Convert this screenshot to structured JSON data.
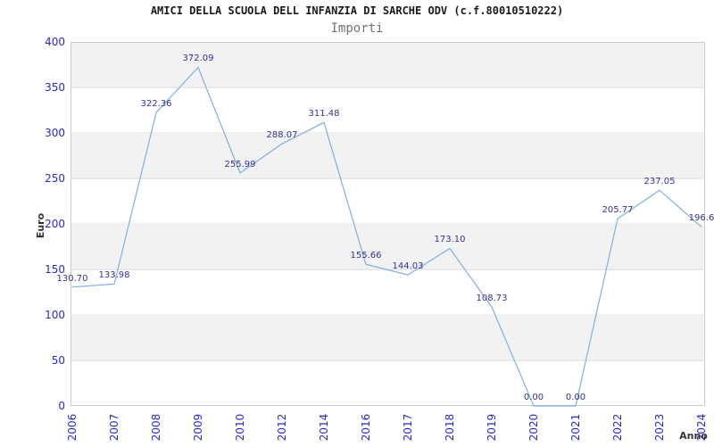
{
  "chart_data": {
    "type": "line",
    "title": "AMICI DELLA SCUOLA DELL INFANZIA DI SARCHE ODV (c.f.80010510222)",
    "subtitle": "Importi",
    "xlabel": "Anno",
    "ylabel": "Euro",
    "categories": [
      "2006",
      "2007",
      "2008",
      "2009",
      "2010",
      "2012",
      "2014",
      "2016",
      "2017",
      "2018",
      "2019",
      "2020",
      "2021",
      "2022",
      "2023",
      "2024"
    ],
    "values": [
      130.7,
      133.98,
      322.36,
      372.09,
      255.99,
      288.07,
      311.48,
      155.66,
      144.03,
      173.1,
      108.73,
      0.0,
      0.0,
      205.77,
      237.05,
      196.6
    ],
    "point_labels": [
      "130.70",
      "133.98",
      "322.36",
      "372.09",
      "255.99",
      "288.07",
      "311.48",
      "155.66",
      "144.03",
      "173.10",
      "108.73",
      "0.00",
      "0.00",
      "205.77",
      "237.05",
      "196.6"
    ],
    "ylim": [
      0,
      400
    ],
    "yticks": [
      0,
      50,
      100,
      150,
      200,
      250,
      300,
      350,
      400
    ],
    "grid": "horizontal-bands",
    "legend": "none",
    "colors": {
      "line": "#7fb0e4",
      "point_label": "#333399",
      "tick_label": "#2828d2",
      "band_gray": "#f2f2f2",
      "band_white": "#ffffff",
      "gridline": "#e0e0e0",
      "plot_border": "#cccccc",
      "title": "#1a1a1a",
      "subtitle": "#737373",
      "axis_title": "#333333"
    }
  }
}
